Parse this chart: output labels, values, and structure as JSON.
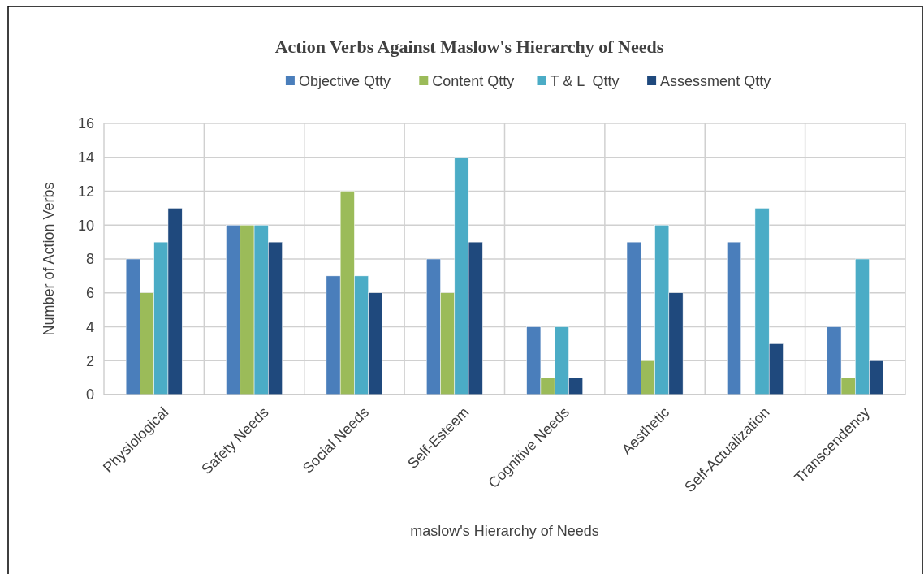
{
  "chart_data": {
    "type": "bar",
    "title": "Action Verbs Against Maslow's Hierarchy of Needs",
    "xlabel": "maslow's Hierarchy of Needs",
    "ylabel": "Number of Action Verbs",
    "categories": [
      "Physiological",
      "Safety Needs",
      "Social Needs",
      "Self-Esteem",
      "Cognitive Needs",
      "Aesthetic",
      "Self-Actualization",
      "Transcendency"
    ],
    "series": [
      {
        "name": "Objective Qtty",
        "color": "#4a7ebb",
        "values": [
          8,
          10,
          7,
          8,
          4,
          9,
          9,
          4
        ]
      },
      {
        "name": "Content Qtty",
        "color": "#9bbb59",
        "values": [
          6,
          10,
          12,
          6,
          1,
          2,
          0,
          1
        ]
      },
      {
        "name": "T & L  Qtty",
        "color": "#4bacc6",
        "values": [
          9,
          10,
          7,
          14,
          4,
          10,
          11,
          8
        ]
      },
      {
        "name": "Assessment Qtty",
        "color": "#1f497d",
        "values": [
          11,
          9,
          6,
          9,
          1,
          6,
          3,
          2
        ]
      }
    ],
    "ylim": [
      0,
      16
    ],
    "yticks": [
      0,
      2,
      4,
      6,
      8,
      10,
      12,
      14,
      16
    ],
    "grid": true,
    "legend": "top"
  }
}
